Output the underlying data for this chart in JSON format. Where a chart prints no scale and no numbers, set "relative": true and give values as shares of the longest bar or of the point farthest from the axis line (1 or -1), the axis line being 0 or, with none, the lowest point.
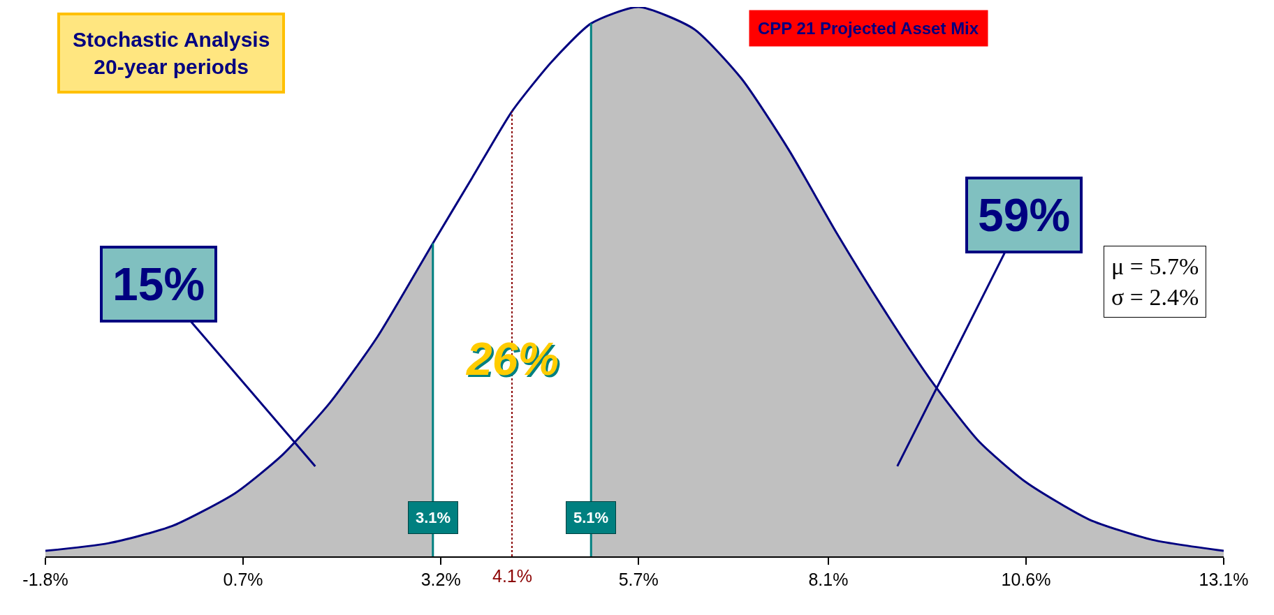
{
  "chart_data": {
    "type": "area",
    "title": "CPP 21 Projected Asset Mix",
    "relative": true,
    "xlim": [
      -1.8,
      13.1
    ],
    "xticks": [
      {
        "value": -1.8,
        "label": "-1.8%"
      },
      {
        "value": 0.7,
        "label": "0.7%"
      },
      {
        "value": 3.2,
        "label": "3.2%"
      },
      {
        "value": 5.7,
        "label": "5.7%"
      },
      {
        "value": 8.1,
        "label": "8.1%"
      },
      {
        "value": 10.6,
        "label": "10.6%"
      },
      {
        "value": 13.1,
        "label": "13.1%"
      }
    ],
    "series": [
      {
        "color": "#c0c0c0",
        "x": [
          -1.8,
          -1.0,
          -0.2,
          0.6,
          1.2,
          1.8,
          2.4,
          3.1
        ],
        "values": [
          0.01,
          0.024,
          0.055,
          0.115,
          0.185,
          0.28,
          0.4,
          0.57
        ]
      },
      {
        "color": "#c0c0c0",
        "x": [
          5.1,
          5.7,
          6.4,
          7.0,
          7.6,
          8.2,
          8.8,
          9.4,
          10.0,
          10.6,
          11.4,
          12.2,
          13.1
        ],
        "values": [
          0.97,
          1.0,
          0.96,
          0.87,
          0.74,
          0.59,
          0.45,
          0.32,
          0.21,
          0.135,
          0.067,
          0.03,
          0.01
        ]
      },
      {
        "type": "line",
        "color": "#000080",
        "x": [
          -1.8,
          -1.0,
          -0.2,
          0.6,
          1.2,
          1.8,
          2.4,
          3.1,
          3.6,
          4.1,
          4.6,
          5.1,
          5.7,
          6.4,
          7.0,
          7.6,
          8.2,
          8.8,
          9.4,
          10.0,
          10.6,
          11.4,
          12.2,
          13.1
        ],
        "values": [
          0.01,
          0.024,
          0.055,
          0.115,
          0.185,
          0.28,
          0.4,
          0.57,
          0.69,
          0.81,
          0.9,
          0.97,
          1.0,
          0.96,
          0.87,
          0.74,
          0.59,
          0.45,
          0.32,
          0.21,
          0.135,
          0.067,
          0.03,
          0.01
        ]
      }
    ],
    "ref_lines": [
      {
        "axis": "x",
        "value": 3.1,
        "label": "3.1%",
        "color": "#008080",
        "line_style": "solid"
      },
      {
        "axis": "x",
        "value": 5.1,
        "label": "5.1%",
        "color": "#008080",
        "line_style": "solid"
      },
      {
        "axis": "x",
        "value": 4.1,
        "label": "4.1%",
        "color": "#8b0000",
        "line_style": "dotted"
      }
    ],
    "annotations": [
      "Stochastic Analysis\n20-year periods",
      "15%",
      {
        "text": "26%",
        "x": 4.1,
        "y": 0.36
      },
      "59%",
      "μ = 5.7%\nσ = 2.4%"
    ]
  }
}
